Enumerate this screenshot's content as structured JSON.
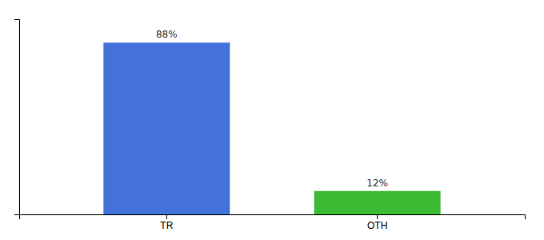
{
  "chart_data": {
    "type": "bar",
    "categories": [
      "TR",
      "OTH"
    ],
    "values": [
      88,
      12
    ],
    "value_labels": [
      "88%",
      "12%"
    ],
    "colors": [
      "#4472db",
      "#3dbb35"
    ],
    "ylim": [
      0,
      100
    ],
    "data_labels": true,
    "tick_labels": "x"
  }
}
